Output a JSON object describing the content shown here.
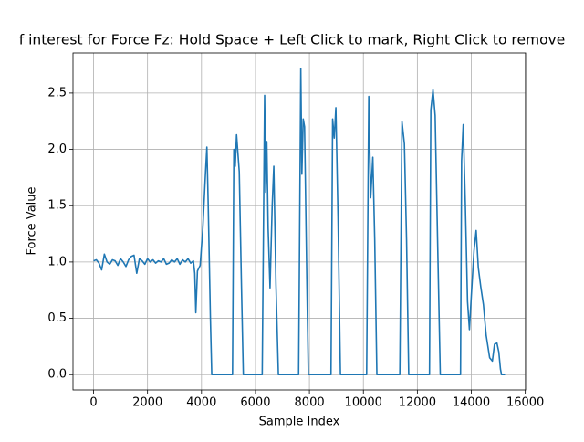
{
  "chart_data": {
    "type": "line",
    "title": "f interest for Force Fz: Hold Space + Left Click to mark, Right Click to remove",
    "x_label": "Sample Index",
    "y_label": "Force Value",
    "color": "#1f77b4",
    "grid": true,
    "xlim": [
      -762,
      16012
    ],
    "ylim": [
      -0.136,
      2.856
    ],
    "xticks": [
      0,
      2000,
      4000,
      6000,
      8000,
      10000,
      12000,
      14000,
      16000
    ],
    "yticks": [
      {
        "value": 0,
        "label": "0.0"
      },
      0.5,
      {
        "value": 1,
        "label": "1.0"
      },
      1.5,
      {
        "value": 2,
        "label": "2.0"
      },
      2.5
    ],
    "x": [
      0,
      100,
      200,
      300,
      400,
      500,
      600,
      700,
      800,
      900,
      1000,
      1100,
      1200,
      1300,
      1400,
      1500,
      1600,
      1700,
      1800,
      1900,
      2000,
      2100,
      2200,
      2300,
      2400,
      2500,
      2600,
      2700,
      2800,
      2900,
      3000,
      3100,
      3200,
      3300,
      3400,
      3500,
      3600,
      3700,
      3750,
      3790,
      3850,
      3950,
      4050,
      4150,
      4200,
      4250,
      4330,
      4380,
      5150,
      5200,
      5250,
      5300,
      5400,
      5480,
      5550,
      6250,
      6340,
      6380,
      6420,
      6470,
      6540,
      6620,
      6680,
      6760,
      6850,
      7600,
      7680,
      7720,
      7770,
      7820,
      7900,
      7960,
      8800,
      8860,
      8920,
      8980,
      9060,
      9150,
      10120,
      10200,
      10270,
      10350,
      10420,
      10500,
      11350,
      11430,
      11520,
      11600,
      11680,
      12450,
      12500,
      12580,
      12660,
      12750,
      12850,
      13600,
      13640,
      13700,
      13780,
      13860,
      13930,
      14000,
      14100,
      14180,
      14260,
      14350,
      14450,
      14550,
      14680,
      14780,
      14860,
      14950,
      15020,
      15080,
      15120,
      15250
    ],
    "values": [
      1.01,
      1.02,
      0.99,
      0.93,
      1.07,
      1.0,
      0.98,
      1.02,
      1.01,
      0.97,
      1.03,
      1.0,
      0.96,
      1.02,
      1.05,
      1.06,
      0.9,
      1.03,
      1.01,
      0.98,
      1.03,
      1.0,
      1.02,
      0.99,
      1.01,
      1.0,
      1.03,
      0.98,
      0.99,
      1.02,
      1.0,
      1.03,
      0.98,
      1.02,
      1.0,
      1.03,
      0.99,
      1.01,
      0.9,
      0.55,
      0.92,
      0.97,
      1.3,
      1.8,
      2.02,
      1.5,
      0.5,
      0,
      0,
      2.0,
      1.85,
      2.13,
      1.8,
      0.8,
      0,
      0,
      2.48,
      1.62,
      2.07,
      1.3,
      0.77,
      1.5,
      1.85,
      0.8,
      0,
      0,
      2.72,
      1.78,
      2.27,
      2.2,
      0.9,
      0,
      0,
      2.27,
      2.1,
      2.37,
      1.4,
      0,
      0,
      2.47,
      1.57,
      1.93,
      1.2,
      0,
      0,
      2.25,
      2.05,
      1.2,
      0,
      0,
      2.35,
      2.53,
      2.3,
      1.2,
      0,
      0,
      1.9,
      2.22,
      1.5,
      0.65,
      0.4,
      0.7,
      1.1,
      1.28,
      0.95,
      0.78,
      0.62,
      0.35,
      0.15,
      0.12,
      0.27,
      0.28,
      0.2,
      0.05,
      0,
      0
    ]
  }
}
